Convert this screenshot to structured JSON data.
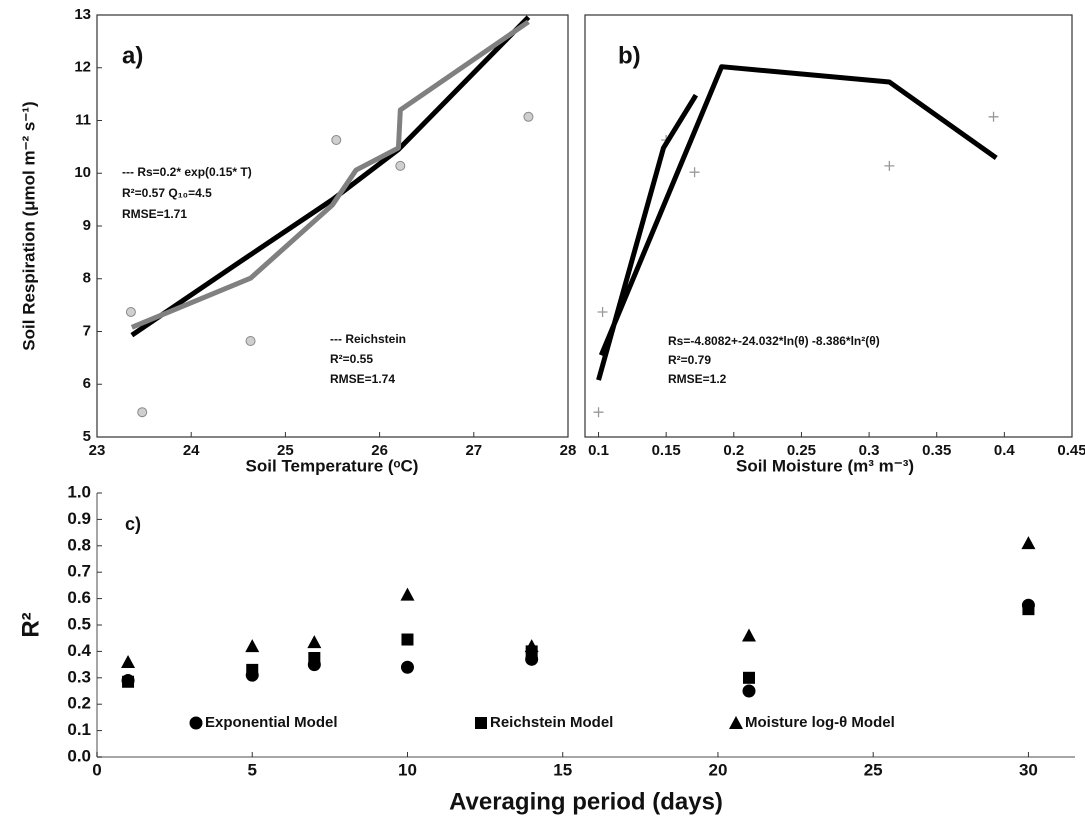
{
  "chart_data": [
    {
      "type": "scatter",
      "panel_label": "a)",
      "x_label": "Soil Temperature (ᵒC)",
      "y_label": "Soil Respiration (μmol m⁻² s⁻¹)",
      "xlim": [
        23,
        28
      ],
      "xticks": [
        23,
        24,
        25,
        26,
        27,
        28
      ],
      "ylim": [
        5,
        13
      ],
      "yticks": [
        5,
        6,
        7,
        8,
        9,
        10,
        11,
        12,
        13
      ],
      "frame": true,
      "annotations": [
        "--- Rs=0.2* exp(0.15* T)",
        "R²=0.57  Q₁₀=4.5",
        "RMSE=1.71",
        "--- Reichstein",
        "R²=0.55",
        "RMSE=1.74"
      ],
      "series": [
        {
          "mode": "markers",
          "marker": "circle",
          "color": "#cfcfcf",
          "x": [
            23.36,
            23.48,
            24.63,
            25.54,
            26.22,
            27.58
          ],
          "values": [
            7.37,
            5.47,
            6.82,
            10.63,
            10.14,
            11.07
          ]
        },
        {
          "mode": "line",
          "color": "#000000",
          "x": [
            23.37,
            24.5,
            25.5,
            26.2,
            27.58
          ],
          "values": [
            6.93,
            8.3,
            9.5,
            10.45,
            12.96
          ]
        },
        {
          "mode": "line",
          "color": "#808080",
          "x": [
            23.37,
            24.63,
            25.5,
            25.75,
            26.2,
            26.22,
            27.58
          ],
          "values": [
            7.08,
            8.01,
            9.4,
            10.06,
            10.48,
            11.2,
            12.87
          ]
        }
      ]
    },
    {
      "type": "scatter",
      "panel_label": "b)",
      "x_label": "Soil Moisture (m³ m⁻³)",
      "xlim": [
        0.09,
        0.45
      ],
      "xticks": [
        0.1,
        0.15,
        0.2,
        0.25,
        0.3,
        0.35,
        0.4,
        0.45
      ],
      "ylim": [
        5,
        13
      ],
      "frame": true,
      "annotations": [
        "Rs=-4.8082+-24.032*ln(θ) -8.386*ln²(θ)",
        "R²=0.79",
        "RMSE=1.2"
      ],
      "series": [
        {
          "mode": "markers",
          "marker": "plus",
          "color": "#999999",
          "x": [
            0.103,
            0.1,
            0.15,
            0.171,
            0.315,
            0.392
          ],
          "values": [
            7.37,
            5.47,
            10.63,
            10.02,
            10.14,
            11.07
          ]
        },
        {
          "mode": "line",
          "color": "#000000",
          "x": [
            0.1,
            0.148,
            0.172,
            null,
            0.102,
            0.191,
            0.315,
            0.394
          ],
          "values": [
            6.08,
            10.48,
            11.48,
            null,
            6.55,
            12.02,
            11.73,
            10.29
          ]
        }
      ]
    },
    {
      "type": "scatter",
      "panel_label": "c)",
      "x_label": "Averaging period (days)",
      "y_label": "R²",
      "xlim": [
        0,
        31.5
      ],
      "xticks": [
        0,
        5,
        10,
        15,
        20,
        25,
        30
      ],
      "ylim": [
        0,
        1
      ],
      "yticks": [
        {
          "value": 0,
          "label": "0.0"
        },
        0.1,
        0.2,
        0.3,
        0.4,
        0.5,
        0.6,
        0.7,
        0.8,
        0.9,
        {
          "value": 1,
          "label": "1.0"
        }
      ],
      "frame": false,
      "series": [
        {
          "name": "Exponential Model",
          "mode": "markers",
          "marker": "circle",
          "color": "#000000",
          "x": [
            1,
            5,
            7,
            10,
            14,
            21,
            30
          ],
          "values": [
            0.29,
            0.31,
            0.35,
            0.34,
            0.37,
            0.25,
            0.575
          ]
        },
        {
          "name": "Reichstein Model",
          "mode": "markers",
          "marker": "square",
          "color": "#000000",
          "x": [
            1,
            5,
            7,
            10,
            14,
            21,
            30
          ],
          "values": [
            0.285,
            0.33,
            0.375,
            0.445,
            0.4,
            0.3,
            0.56
          ]
        },
        {
          "name": "Moisture log-θ Model",
          "mode": "markers",
          "marker": "triangle",
          "color": "#000000",
          "x": [
            1,
            5,
            7,
            10,
            14,
            21,
            30
          ],
          "values": [
            0.36,
            0.42,
            0.435,
            0.615,
            0.42,
            0.46,
            0.81
          ]
        }
      ]
    }
  ]
}
